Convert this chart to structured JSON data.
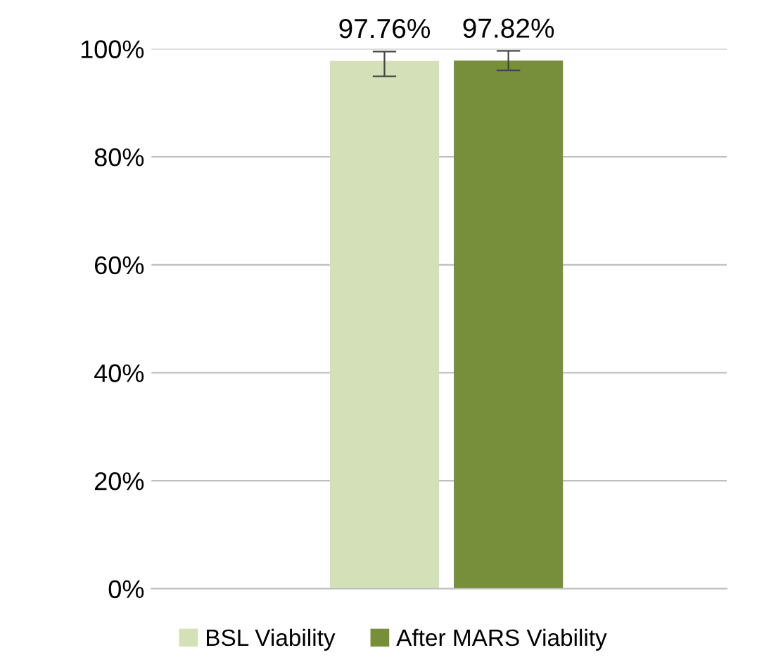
{
  "chart_data": {
    "type": "bar",
    "categories": [
      null
    ],
    "series": [
      {
        "name": "BSL Viability",
        "color": "#d4e0b8",
        "values": [
          97.76
        ],
        "errors": [
          [
            94.9,
            99.5
          ]
        ],
        "value_labels": [
          "97.76%"
        ]
      },
      {
        "name": "After MARS Viability",
        "color": "#778f3b",
        "values": [
          97.82
        ],
        "errors": [
          1.8
        ],
        "value_labels": [
          "97.82%"
        ]
      }
    ],
    "ylim": [
      0,
      100
    ],
    "yticks": [
      {
        "value": 0,
        "label": "0%"
      },
      {
        "value": 20,
        "label": "20%"
      },
      {
        "value": 40,
        "label": "40%"
      },
      {
        "value": 60,
        "label": "60%"
      },
      {
        "value": 80,
        "label": "80%"
      },
      {
        "value": 100,
        "label": "100%"
      }
    ],
    "grid": "y",
    "legend": "bottom"
  }
}
